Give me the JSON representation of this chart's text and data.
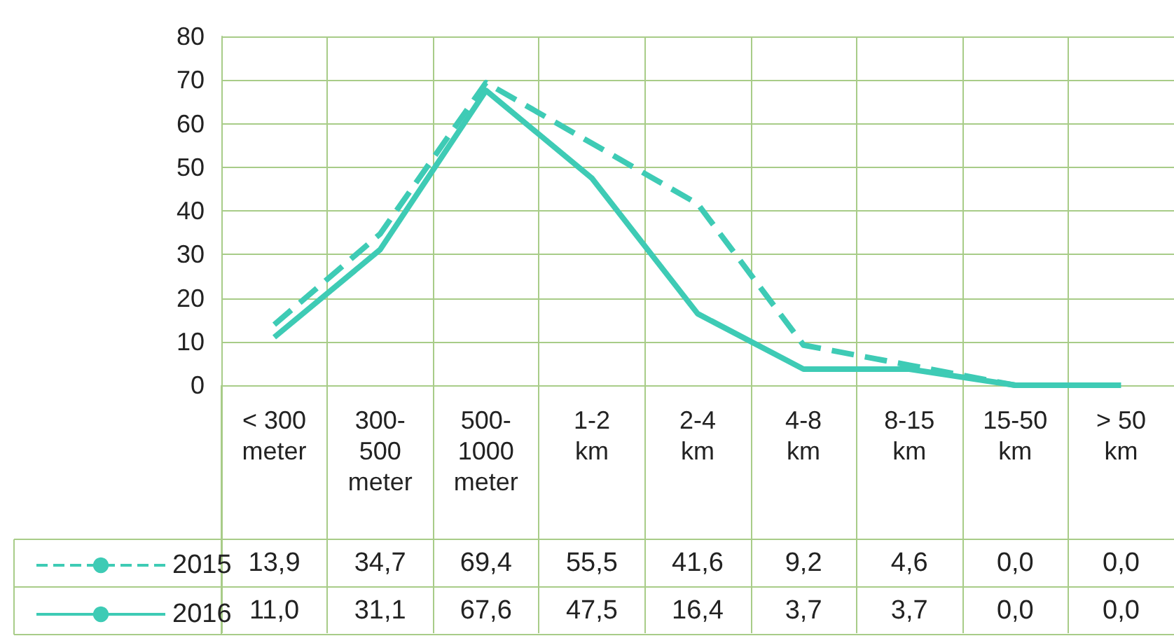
{
  "chart_data": {
    "type": "line",
    "categories": [
      "< 300\nmeter",
      "300-\n500\nmeter",
      "500-\n1000\nmeter",
      "1-2\nkm",
      "2-4\nkm",
      "4-8\nkm",
      "8-15\nkm",
      "15-50\nkm",
      "> 50\nkm"
    ],
    "series": [
      {
        "name": "2015",
        "color": "#3ecbb5",
        "line_style": "dashed",
        "values": [
          13.9,
          34.7,
          69.4,
          55.5,
          41.6,
          9.2,
          4.6,
          0.0,
          0.0
        ],
        "value_labels": [
          "13,9",
          "34,7",
          "69,4",
          "55,5",
          "41,6",
          "9,2",
          "4,6",
          "0,0",
          "0,0"
        ]
      },
      {
        "name": "2016",
        "color": "#3ecbb5",
        "line_style": "solid",
        "values": [
          11.0,
          31.1,
          67.6,
          47.5,
          16.4,
          3.7,
          3.7,
          0.0,
          0.0
        ],
        "value_labels": [
          "11,0",
          "31,1",
          "67,6",
          "47,5",
          "16,4",
          "3,7",
          "3,7",
          "0,0",
          "0,0"
        ]
      }
    ],
    "ylim": [
      0,
      80
    ],
    "yticks": [
      0,
      10,
      20,
      30,
      40,
      50,
      60,
      70,
      80
    ],
    "grid": true,
    "legend": "bottom left",
    "marker": "none"
  }
}
